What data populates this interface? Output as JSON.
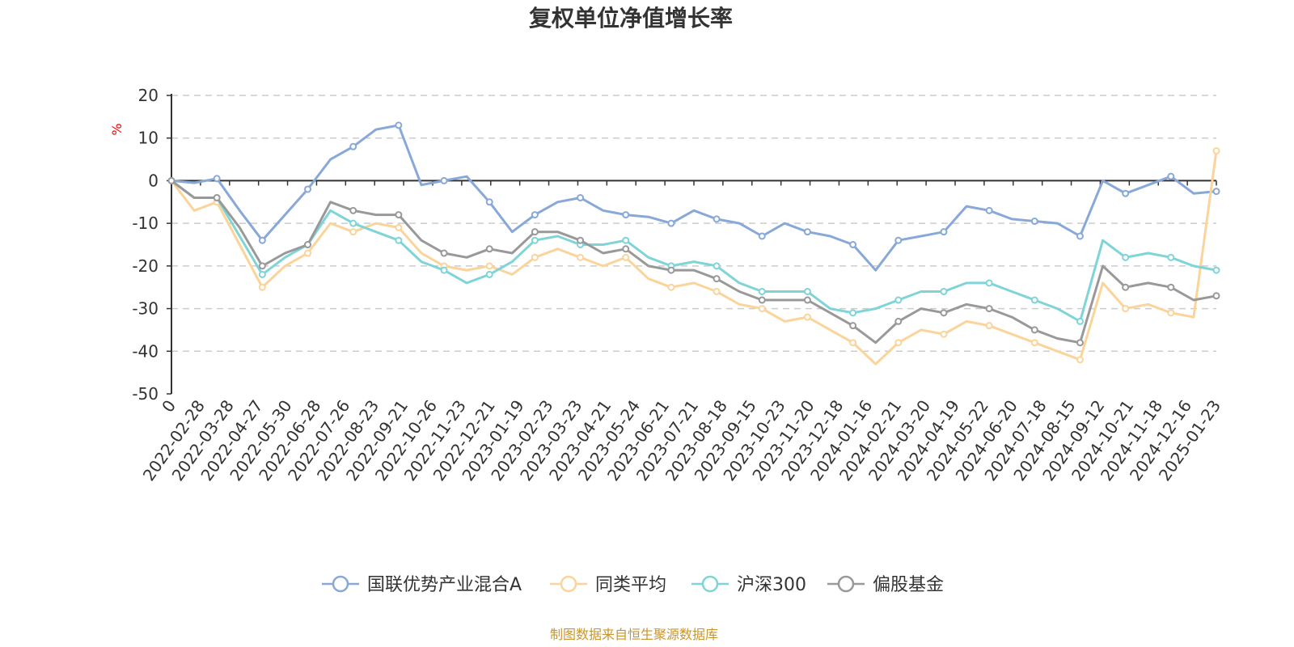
{
  "chart_data": {
    "type": "line",
    "title": "复权单位净值增长率",
    "ylabel": "%",
    "ylim": [
      -50,
      20
    ],
    "yticks": [
      20,
      10,
      0,
      -10,
      -20,
      -30,
      -40,
      -50
    ],
    "xticks": [
      "0",
      "2022-02-28",
      "2022-03-28",
      "2022-04-27",
      "2022-05-30",
      "2022-06-28",
      "2022-07-26",
      "2022-08-23",
      "2022-09-21",
      "2022-10-26",
      "2022-11-23",
      "2022-12-21",
      "2023-01-19",
      "2023-02-23",
      "2023-03-23",
      "2023-04-21",
      "2023-05-24",
      "2023-06-21",
      "2023-07-21",
      "2023-08-18",
      "2023-09-15",
      "2023-10-23",
      "2023-11-20",
      "2023-12-18",
      "2024-01-16",
      "2024-02-21",
      "2024-03-20",
      "2024-04-19",
      "2024-05-22",
      "2024-06-20",
      "2024-07-18",
      "2024-08-15",
      "2024-09-12",
      "2024-10-21",
      "2024-11-18",
      "2024-12-16",
      "2025-01-23"
    ],
    "grid": true,
    "legend_position": "bottom",
    "source": "制图数据来自恒生聚源数据库",
    "series": [
      {
        "name": "国联优势产业混合A",
        "color": "#88a8d8",
        "values": [
          0,
          -0.5,
          0.5,
          -7,
          -14,
          -8,
          -2,
          5,
          8,
          12,
          13,
          -1,
          0,
          1,
          -5,
          -12,
          -8,
          -5,
          -4,
          -7,
          -8,
          -8.5,
          -10,
          -7,
          -9,
          -10,
          -13,
          -10,
          -12,
          -13,
          -15,
          -21,
          -14,
          -13,
          -12,
          -6,
          -7,
          -9,
          -9.5,
          -10,
          -13,
          0,
          -3,
          -1,
          1,
          -3,
          -2.5
        ]
      },
      {
        "name": "同类平均",
        "color": "#fad49a",
        "values": [
          0,
          -7,
          -5,
          -15,
          -25,
          -20,
          -17,
          -10,
          -12,
          -10,
          -11,
          -17,
          -20,
          -21,
          -20,
          -22,
          -18,
          -16,
          -18,
          -20,
          -18,
          -23,
          -25,
          -24,
          -26,
          -29,
          -30,
          -33,
          -32,
          -35,
          -38,
          -43,
          -38,
          -35,
          -36,
          -33,
          -34,
          -36,
          -38,
          -40,
          -42,
          -24,
          -30,
          -29,
          -31,
          -32,
          7
        ]
      },
      {
        "name": "沪深300",
        "color": "#7fd4d8",
        "values": [
          0,
          -4,
          -4,
          -13,
          -22,
          -18,
          -15,
          -7,
          -10,
          -12,
          -14,
          -19,
          -21,
          -24,
          -22,
          -19,
          -14,
          -13,
          -15,
          -15,
          -14,
          -18,
          -20,
          -19,
          -20,
          -24,
          -26,
          -26,
          -26,
          -30,
          -31,
          -30,
          -28,
          -26,
          -26,
          -24,
          -24,
          -26,
          -28,
          -30,
          -33,
          -14,
          -18,
          -17,
          -18,
          -20,
          -21
        ]
      },
      {
        "name": "偏股基金",
        "color": "#999999",
        "values": [
          0,
          -4,
          -4,
          -11,
          -20,
          -17,
          -15,
          -5,
          -7,
          -8,
          -8,
          -14,
          -17,
          -18,
          -16,
          -17,
          -12,
          -12,
          -14,
          -17,
          -16,
          -20,
          -21,
          -21,
          -23,
          -26,
          -28,
          -28,
          -28,
          -31,
          -34,
          -38,
          -33,
          -30,
          -31,
          -29,
          -30,
          -32,
          -35,
          -37,
          -38,
          -20,
          -25,
          -24,
          -25,
          -28,
          -27
        ]
      }
    ]
  }
}
